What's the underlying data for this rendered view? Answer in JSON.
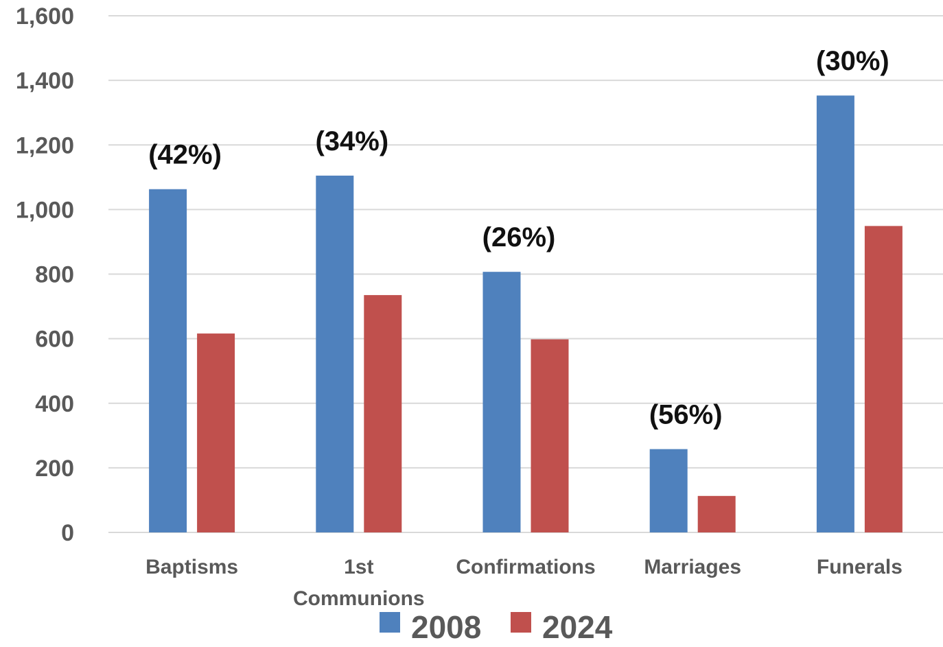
{
  "chart_data": {
    "type": "bar",
    "categories": [
      "Baptisms",
      "1st Communions",
      "Confirmations",
      "Marriages",
      "Funerals"
    ],
    "category_lines": [
      [
        "Baptisms"
      ],
      [
        "1st",
        "Communions"
      ],
      [
        "Confirmations"
      ],
      [
        "Marriages"
      ],
      [
        "Funerals"
      ]
    ],
    "series": [
      {
        "name": "2008",
        "color": "#4F81BD",
        "values": [
          1063,
          1105,
          807,
          258,
          1353
        ]
      },
      {
        "name": "2024",
        "color": "#C0504D",
        "values": [
          616,
          735,
          598,
          113,
          949
        ]
      }
    ],
    "annotations": [
      "(42%)",
      "(34%)",
      "(26%)",
      "(56%)",
      "(30%)"
    ],
    "ylim": [
      0,
      1600
    ],
    "yticks": [
      0,
      200,
      400,
      600,
      800,
      1000,
      1200,
      1400,
      1600
    ],
    "ytick_labels": [
      "0",
      "200",
      "400",
      "600",
      "800",
      "1,000",
      "1,200",
      "1,400",
      "1,600"
    ],
    "grid": true,
    "legend_position": "bottom",
    "title": "",
    "xlabel": "",
    "ylabel": ""
  }
}
